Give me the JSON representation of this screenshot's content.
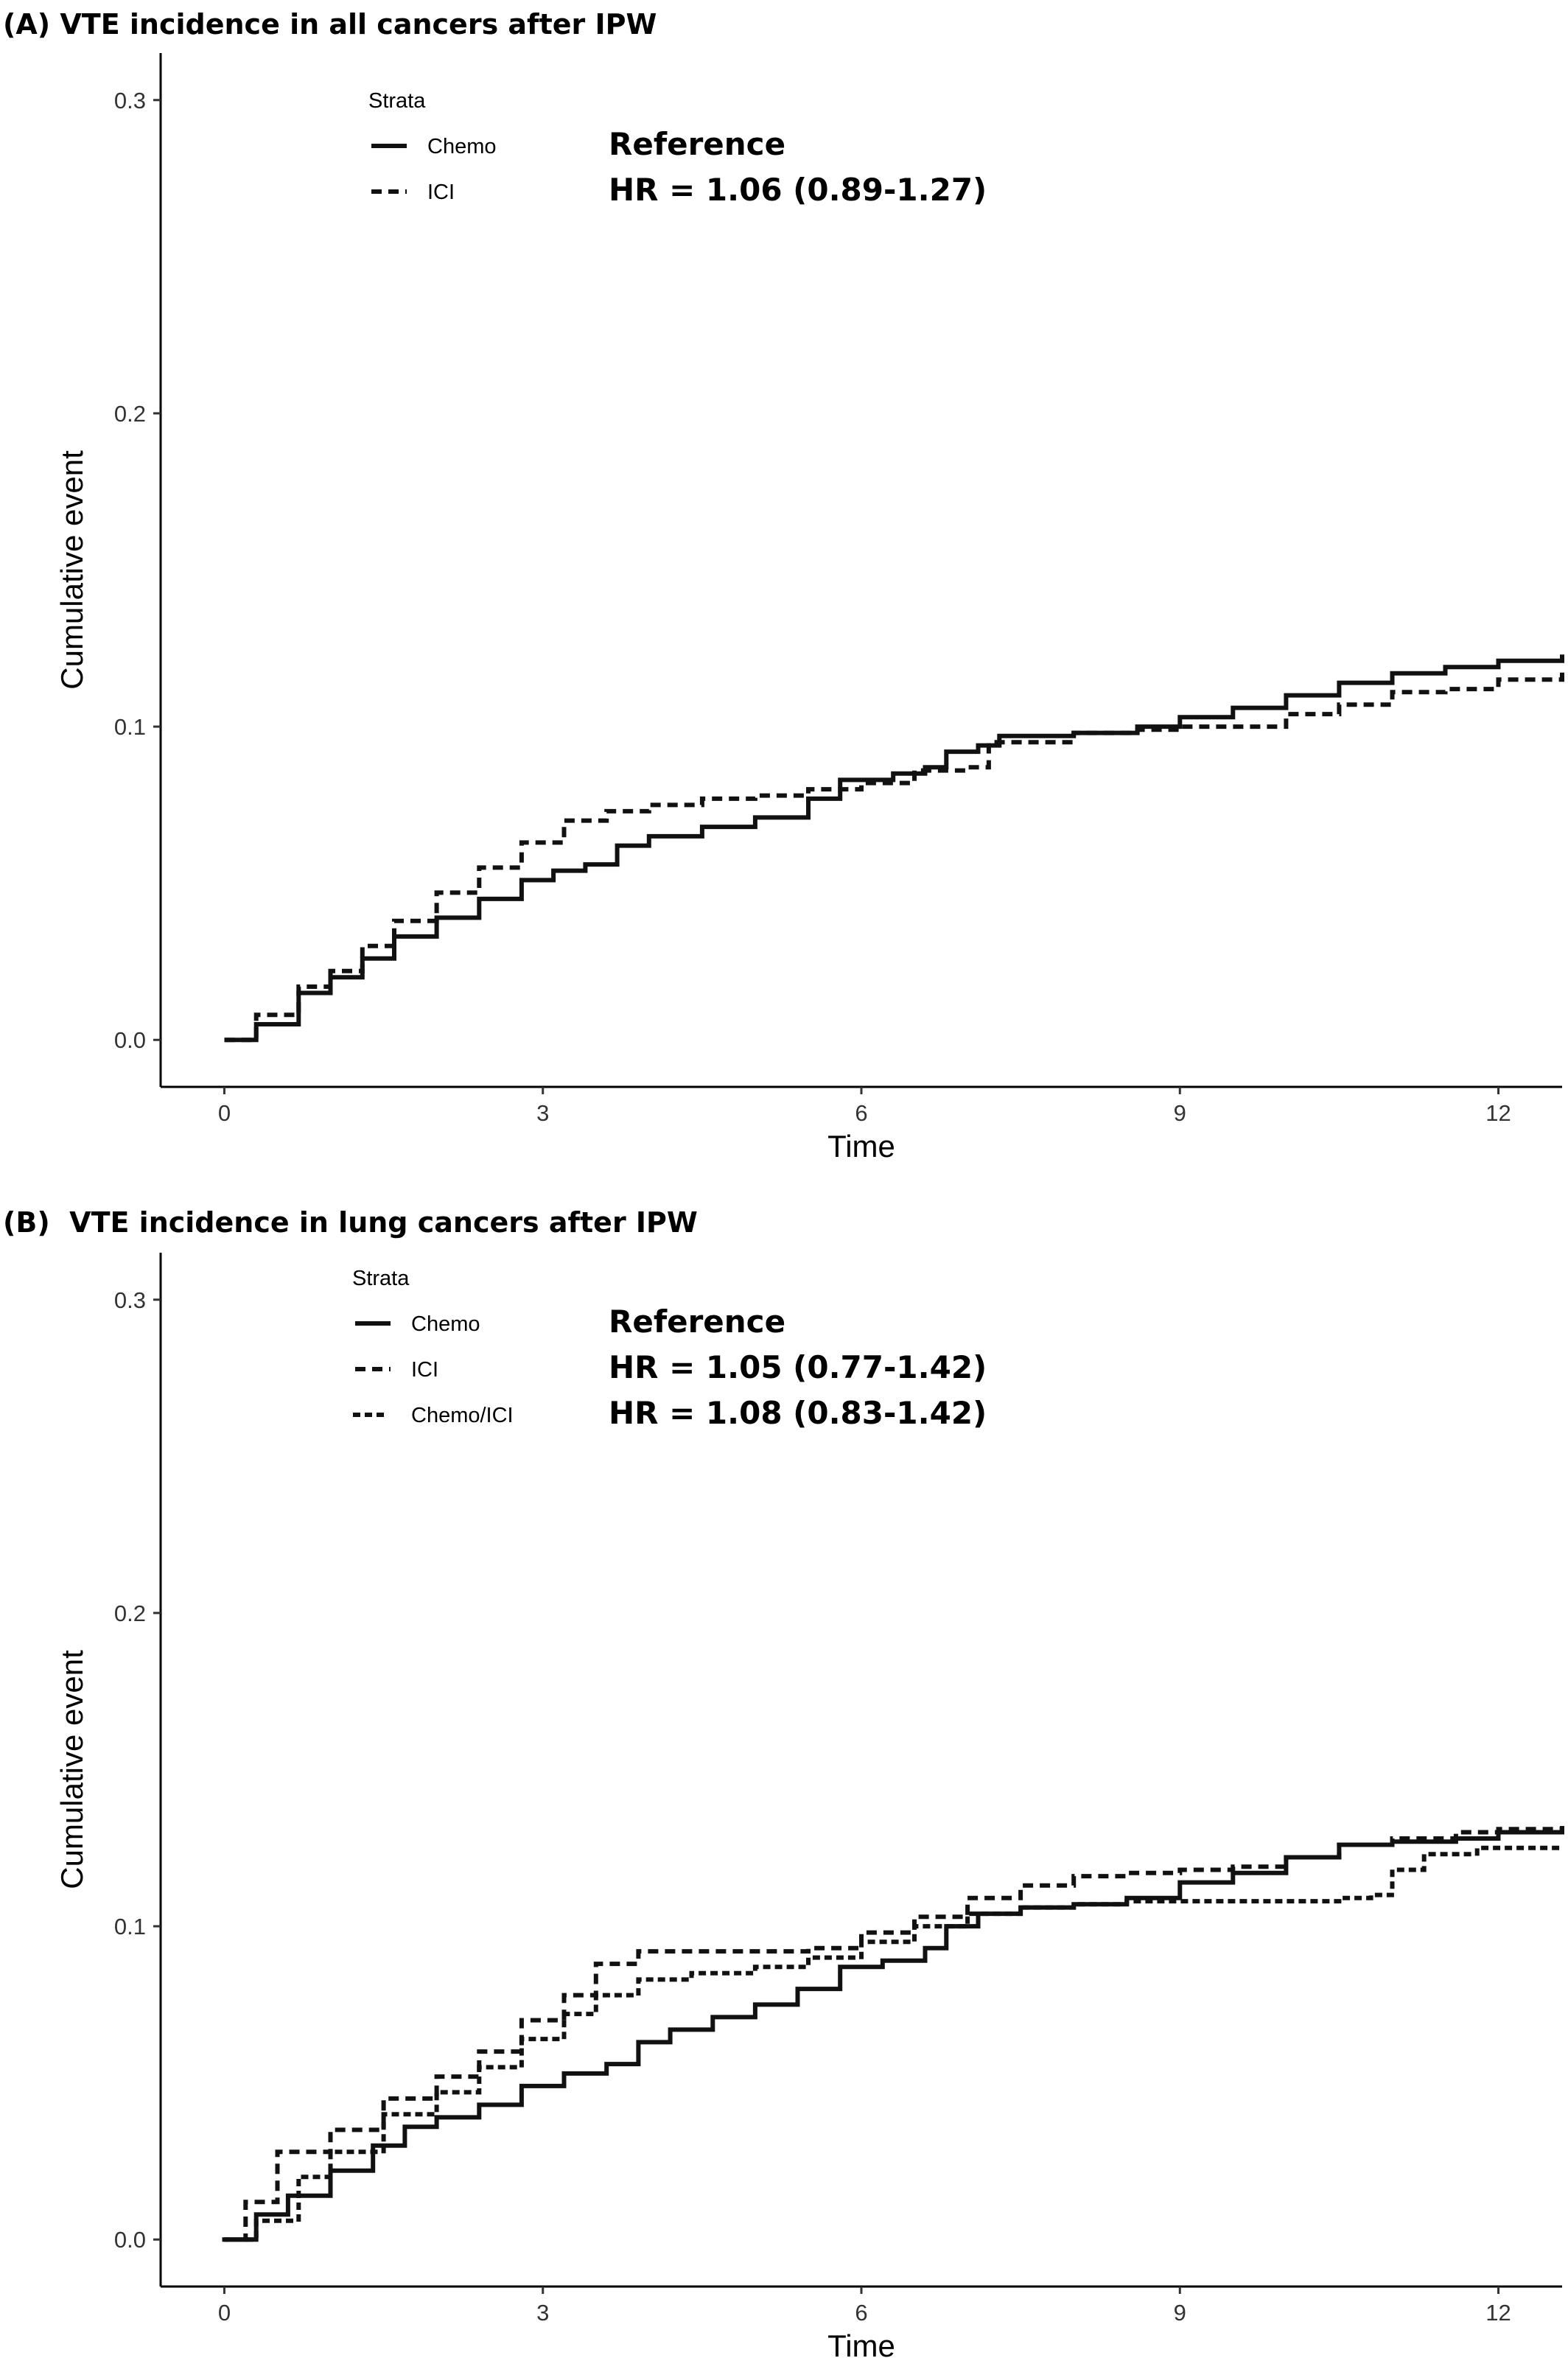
{
  "chart_data": [
    {
      "type": "line",
      "title": "(A) VTE incidence in all cancers after IPW",
      "xlabel": "Time",
      "ylabel": "Cumulative event",
      "xlim": [
        -0.6,
        12.6
      ],
      "ylim": [
        -0.015,
        0.315
      ],
      "xticks": [
        0,
        3,
        6,
        9,
        12
      ],
      "xtick_labels": [
        "0",
        "3",
        "6",
        "9",
        "12"
      ],
      "yticks": [
        0.0,
        0.1,
        0.2,
        0.3
      ],
      "ytick_labels": [
        "0.0",
        "0.1",
        "0.2",
        "0.3"
      ],
      "grid": false,
      "legend_title": "Strata",
      "legend_position": "top-left",
      "series": [
        {
          "name": "Chemo",
          "style": "solid",
          "annotation": "Reference",
          "points": [
            [
              0,
              0
            ],
            [
              0.3,
              0.005
            ],
            [
              0.7,
              0.015
            ],
            [
              1.0,
              0.02
            ],
            [
              1.3,
              0.026
            ],
            [
              1.6,
              0.033
            ],
            [
              2.0,
              0.039
            ],
            [
              2.4,
              0.045
            ],
            [
              2.8,
              0.051
            ],
            [
              3.1,
              0.054
            ],
            [
              3.4,
              0.056
            ],
            [
              3.7,
              0.062
            ],
            [
              4.0,
              0.065
            ],
            [
              4.5,
              0.068
            ],
            [
              5.0,
              0.071
            ],
            [
              5.5,
              0.077
            ],
            [
              5.8,
              0.083
            ],
            [
              6.3,
              0.085
            ],
            [
              6.6,
              0.087
            ],
            [
              6.8,
              0.092
            ],
            [
              7.1,
              0.094
            ],
            [
              7.3,
              0.097
            ],
            [
              8.0,
              0.098
            ],
            [
              8.6,
              0.1
            ],
            [
              9.0,
              0.103
            ],
            [
              9.5,
              0.106
            ],
            [
              10.0,
              0.11
            ],
            [
              10.5,
              0.114
            ],
            [
              11.0,
              0.117
            ],
            [
              11.5,
              0.119
            ],
            [
              12.0,
              0.121
            ],
            [
              12.6,
              0.123
            ]
          ]
        },
        {
          "name": "ICI",
          "style": "dashed",
          "annotation": "HR = 1.06 (0.89-1.27)",
          "points": [
            [
              0,
              0
            ],
            [
              0.3,
              0.008
            ],
            [
              0.7,
              0.017
            ],
            [
              1.0,
              0.022
            ],
            [
              1.3,
              0.03
            ],
            [
              1.6,
              0.038
            ],
            [
              2.0,
              0.047
            ],
            [
              2.4,
              0.055
            ],
            [
              2.8,
              0.063
            ],
            [
              3.2,
              0.07
            ],
            [
              3.6,
              0.073
            ],
            [
              4.0,
              0.075
            ],
            [
              4.5,
              0.077
            ],
            [
              5.0,
              0.078
            ],
            [
              5.5,
              0.08
            ],
            [
              6.0,
              0.082
            ],
            [
              6.5,
              0.086
            ],
            [
              7.0,
              0.087
            ],
            [
              7.2,
              0.095
            ],
            [
              8.0,
              0.098
            ],
            [
              8.6,
              0.099
            ],
            [
              9.0,
              0.1
            ],
            [
              9.5,
              0.1
            ],
            [
              10.0,
              0.104
            ],
            [
              10.5,
              0.107
            ],
            [
              11.0,
              0.111
            ],
            [
              11.5,
              0.112
            ],
            [
              12.0,
              0.115
            ],
            [
              12.6,
              0.118
            ]
          ]
        }
      ]
    },
    {
      "type": "line",
      "title": "(B)  VTE incidence in lung cancers after IPW",
      "xlabel": "Time",
      "ylabel": "Cumulative event",
      "xlim": [
        -0.6,
        12.6
      ],
      "ylim": [
        -0.015,
        0.315
      ],
      "xticks": [
        0,
        3,
        6,
        9,
        12
      ],
      "xtick_labels": [
        "0",
        "3",
        "6",
        "9",
        "12"
      ],
      "yticks": [
        0.0,
        0.1,
        0.2,
        0.3
      ],
      "ytick_labels": [
        "0.0",
        "0.1",
        "0.2",
        "0.3"
      ],
      "grid": false,
      "legend_title": "Strata",
      "legend_position": "top-left",
      "series": [
        {
          "name": "Chemo",
          "style": "solid",
          "annotation": "Reference",
          "points": [
            [
              0,
              0
            ],
            [
              0.3,
              0.008
            ],
            [
              0.6,
              0.014
            ],
            [
              1.0,
              0.022
            ],
            [
              1.4,
              0.03
            ],
            [
              1.7,
              0.036
            ],
            [
              2.0,
              0.039
            ],
            [
              2.4,
              0.043
            ],
            [
              2.8,
              0.049
            ],
            [
              3.2,
              0.053
            ],
            [
              3.6,
              0.056
            ],
            [
              3.9,
              0.063
            ],
            [
              4.2,
              0.067
            ],
            [
              4.6,
              0.071
            ],
            [
              5.0,
              0.075
            ],
            [
              5.4,
              0.08
            ],
            [
              5.8,
              0.087
            ],
            [
              6.2,
              0.089
            ],
            [
              6.6,
              0.093
            ],
            [
              6.8,
              0.1
            ],
            [
              7.1,
              0.104
            ],
            [
              7.5,
              0.106
            ],
            [
              8.0,
              0.107
            ],
            [
              8.5,
              0.109
            ],
            [
              9.0,
              0.114
            ],
            [
              9.5,
              0.117
            ],
            [
              10.0,
              0.122
            ],
            [
              10.5,
              0.126
            ],
            [
              11.0,
              0.127
            ],
            [
              11.6,
              0.128
            ],
            [
              12.0,
              0.13
            ],
            [
              12.6,
              0.131
            ]
          ]
        },
        {
          "name": "ICI",
          "style": "dashed",
          "annotation": "HR = 1.05 (0.77-1.42)",
          "points": [
            [
              0,
              0
            ],
            [
              0.2,
              0.012
            ],
            [
              0.5,
              0.028
            ],
            [
              1.0,
              0.035
            ],
            [
              1.5,
              0.045
            ],
            [
              2.0,
              0.052
            ],
            [
              2.4,
              0.06
            ],
            [
              2.8,
              0.07
            ],
            [
              3.2,
              0.078
            ],
            [
              3.5,
              0.088
            ],
            [
              3.9,
              0.092
            ],
            [
              4.5,
              0.092
            ],
            [
              5.0,
              0.092
            ],
            [
              5.5,
              0.093
            ],
            [
              6.0,
              0.098
            ],
            [
              6.5,
              0.103
            ],
            [
              7.0,
              0.109
            ],
            [
              7.5,
              0.113
            ],
            [
              8.0,
              0.116
            ],
            [
              8.5,
              0.117
            ],
            [
              9.0,
              0.118
            ],
            [
              9.5,
              0.119
            ],
            [
              10.0,
              0.122
            ],
            [
              10.5,
              0.126
            ],
            [
              11.0,
              0.128
            ],
            [
              11.6,
              0.13
            ],
            [
              12.0,
              0.131
            ],
            [
              12.6,
              0.132
            ]
          ]
        },
        {
          "name": "Chemo/ICI",
          "style": "dotted",
          "annotation": "HR = 1.08 (0.83-1.42)",
          "points": [
            [
              0,
              0
            ],
            [
              0.3,
              0.006
            ],
            [
              0.7,
              0.02
            ],
            [
              1.0,
              0.028
            ],
            [
              1.5,
              0.04
            ],
            [
              2.0,
              0.047
            ],
            [
              2.4,
              0.055
            ],
            [
              2.8,
              0.064
            ],
            [
              3.2,
              0.072
            ],
            [
              3.5,
              0.078
            ],
            [
              3.9,
              0.083
            ],
            [
              4.4,
              0.085
            ],
            [
              5.0,
              0.087
            ],
            [
              5.5,
              0.09
            ],
            [
              6.0,
              0.095
            ],
            [
              6.5,
              0.1
            ],
            [
              7.0,
              0.104
            ],
            [
              7.5,
              0.106
            ],
            [
              8.0,
              0.107
            ],
            [
              8.5,
              0.108
            ],
            [
              9.0,
              0.108
            ],
            [
              9.5,
              0.108
            ],
            [
              10.0,
              0.108
            ],
            [
              10.5,
              0.109
            ],
            [
              10.8,
              0.11
            ],
            [
              11.0,
              0.118
            ],
            [
              11.3,
              0.123
            ],
            [
              11.8,
              0.125
            ],
            [
              12.6,
              0.126
            ]
          ]
        }
      ]
    }
  ]
}
